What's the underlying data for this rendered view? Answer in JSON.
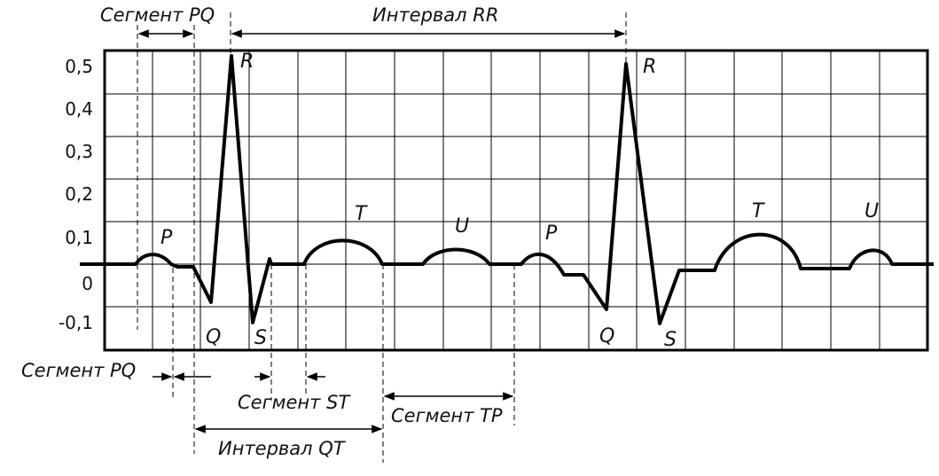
{
  "figure": {
    "y_ticks": [
      "0,5",
      "0,4",
      "0,3",
      "0,2",
      "0,1",
      "0",
      "-0,1"
    ],
    "wave_labels": {
      "p1": "P",
      "q1": "Q",
      "r1": "R",
      "s1": "S",
      "t1": "T",
      "u1": "U",
      "p2": "P",
      "q2": "Q",
      "r2": "R",
      "s2": "S",
      "t2": "T",
      "u2": "U"
    },
    "segments": {
      "pq_top": "Сегмент PQ",
      "rr_interval": "Интервал RR",
      "pq_bottom": "Сегмент PQ",
      "st": "Сегмент ST",
      "tp": "Сегмент TP",
      "qt_interval": "Интервал QT"
    }
  },
  "colors": {
    "line": "#000000",
    "grid": "#000000",
    "background": "#ffffff"
  }
}
